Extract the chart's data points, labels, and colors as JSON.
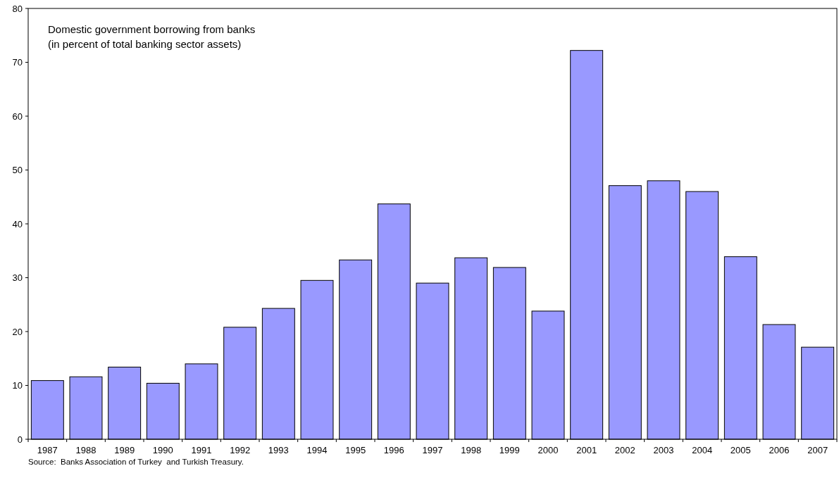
{
  "chart_data": {
    "type": "bar",
    "title": "Domestic government borrowing from banks",
    "subtitle": "(in percent of total banking sector assets)",
    "categories": [
      "1987",
      "1988",
      "1989",
      "1990",
      "1991",
      "1992",
      "1993",
      "1994",
      "1995",
      "1996",
      "1997",
      "1998",
      "1999",
      "2000",
      "2001",
      "2002",
      "2003",
      "2004",
      "2005",
      "2006",
      "2007"
    ],
    "values": [
      10.9,
      11.6,
      13.4,
      10.4,
      14.0,
      20.8,
      24.3,
      29.5,
      33.3,
      43.7,
      29.0,
      33.7,
      31.9,
      23.8,
      72.2,
      47.1,
      48.0,
      46.0,
      33.9,
      21.3,
      17.1
    ],
    "color": "#9999ff",
    "ylim": [
      0,
      80
    ],
    "yticks": [
      0,
      10,
      20,
      30,
      40,
      50,
      60,
      70,
      80
    ],
    "annotations": [
      "Source:  Banks Association of Turkey  and Turkish Treasury."
    ]
  }
}
